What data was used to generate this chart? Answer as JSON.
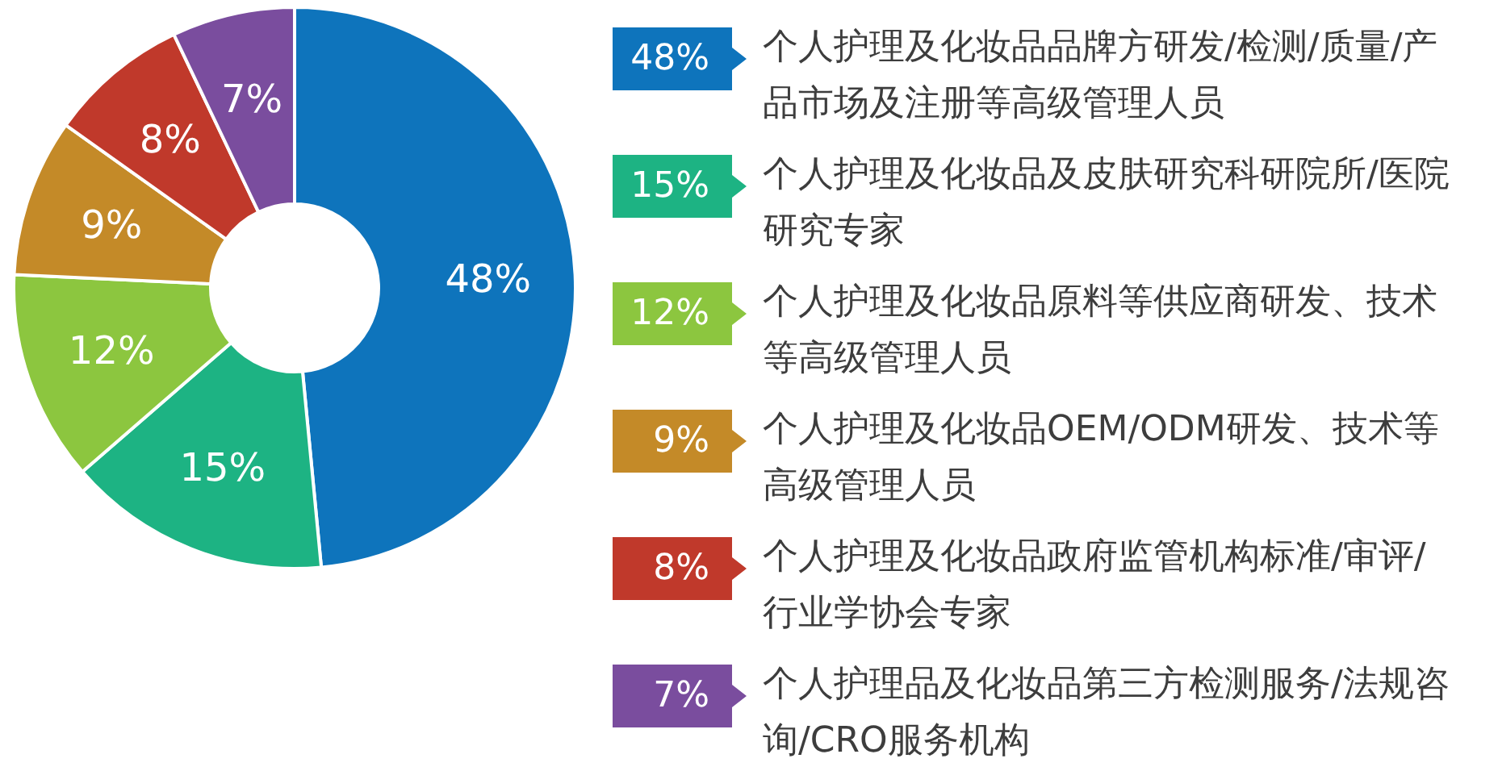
{
  "chart_data": {
    "type": "donut",
    "categories": [
      "个人护理及化妆品品牌方研发/检测/质量/产品市场及注册等高级管理人员",
      "个人护理及化妆品及皮肤研究科研院所/医院研究专家",
      "个人护理及化妆品原料等供应商研发、技术等高级管理人员",
      "个人护理及化妆品OEM/ODM研发、技术等高级管理人员",
      "个人护理及化妆品政府监管机构标准/审评/行业学协会专家",
      "个人护理品及化妆品第三方检测服务/法规咨询/CRO服务机构"
    ],
    "values": [
      48,
      15,
      12,
      9,
      8,
      7
    ],
    "value_labels": [
      "48%",
      "15%",
      "12%",
      "9%",
      "8%",
      "7%"
    ],
    "colors": [
      "#0e74bc",
      "#1db383",
      "#8cc63f",
      "#c48a28",
      "#c0392b",
      "#7a4d9e"
    ],
    "legend": "right"
  }
}
